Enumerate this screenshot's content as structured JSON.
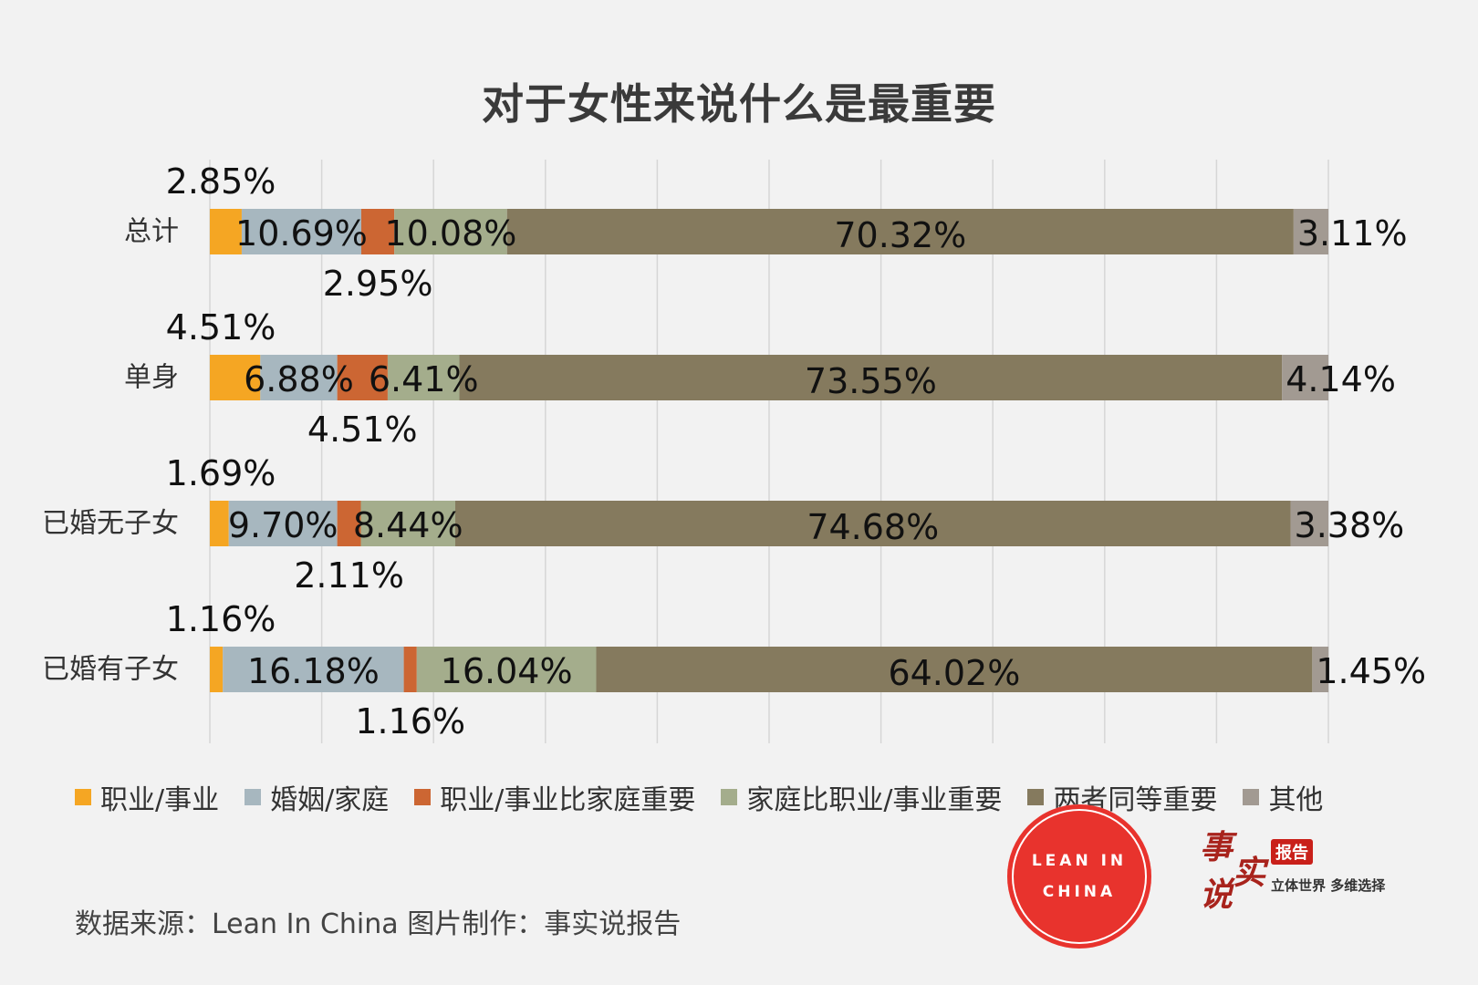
{
  "title": "对于女性来说什么是最重要",
  "colors": {
    "职业/事业": "#f5a623",
    "婚姻/家庭": "#a7b7bf",
    "职业/事业比家庭重要": "#cc6633",
    "家庭比职业/事业重要": "#a4ad8c",
    "两者同等重要": "#857a5e",
    "其他": "#a29a92",
    "gridline": "#d6d6d6"
  },
  "chart_data": {
    "type": "bar",
    "orientation": "horizontal",
    "stacked": true,
    "categories": [
      "总计",
      "单身",
      "已婚无子女",
      "已婚有子女"
    ],
    "series": [
      {
        "name": "职业/事业",
        "values": [
          2.85,
          4.51,
          1.69,
          1.16
        ],
        "labels": [
          "2.85%",
          "4.51%",
          "1.69%",
          "1.16%"
        ]
      },
      {
        "name": "婚姻/家庭",
        "values": [
          10.69,
          6.88,
          9.7,
          16.18
        ],
        "labels": [
          "10.69%",
          "6.88%",
          "9.70%",
          "16.18%"
        ]
      },
      {
        "name": "职业/事业比家庭重要",
        "values": [
          2.95,
          4.51,
          2.11,
          1.16
        ],
        "labels": [
          "2.95%",
          "4.51%",
          "2.11%",
          "1.16%"
        ]
      },
      {
        "name": "家庭比职业/事业重要",
        "values": [
          10.08,
          6.41,
          8.44,
          16.04
        ],
        "labels": [
          "10.08%",
          "6.41%",
          "8.44%",
          "16.04%"
        ]
      },
      {
        "name": "两者同等重要",
        "values": [
          70.32,
          73.55,
          74.68,
          64.02
        ],
        "labels": [
          "70.32%",
          "73.55%",
          "74.68%",
          "64.02%"
        ]
      },
      {
        "name": "其他",
        "values": [
          3.11,
          4.14,
          3.38,
          1.45
        ],
        "labels": [
          "3.11%",
          "4.14%",
          "3.38%",
          "1.45%"
        ]
      }
    ],
    "xlim": [
      0,
      100
    ],
    "grid": true,
    "legend_position": "bottom"
  },
  "source_note": "数据来源：Lean In China  图片制作：事实说报告",
  "logo_lean": {
    "line1": "LEAN IN",
    "line2": "CHINA"
  },
  "logo_brand": {
    "glyphs": [
      "事",
      "实",
      "说"
    ],
    "badge": "报告",
    "slogan": "立体世界 多维选择"
  }
}
